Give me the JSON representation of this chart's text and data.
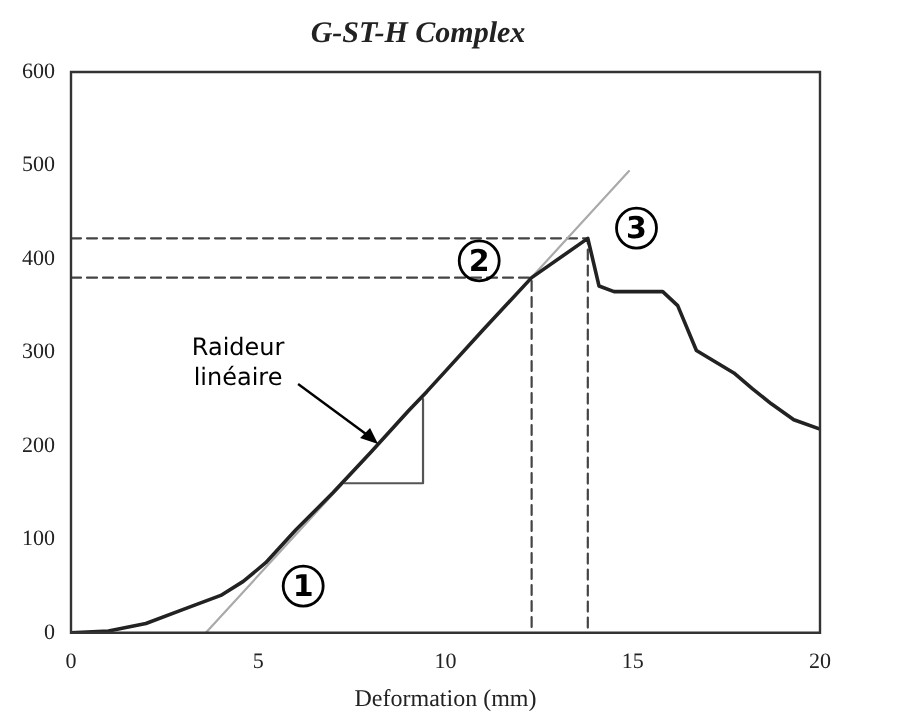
{
  "chart_data": {
    "type": "line",
    "title": "G-ST-H Complex",
    "xlabel": "Deformation (mm)",
    "x": [
      0,
      1,
      2,
      3,
      4,
      4.6,
      5.2,
      6,
      7,
      8,
      9,
      9.5,
      10,
      11,
      12.3,
      13.8,
      14.1,
      14.5,
      15.8,
      16.2,
      16.7,
      17.2,
      17.7,
      18.2,
      18.7,
      19.3,
      20
    ],
    "series": [
      {
        "color": "#222222",
        "values": [
          0,
          2,
          10,
          25,
          40,
          55,
          75,
          110,
          150,
          193,
          237,
          258,
          280,
          324,
          380,
          422,
          371,
          365,
          365,
          350,
          302,
          290,
          278,
          261,
          245,
          228,
          218
        ]
      },
      {
        "color": "#aaaaaa",
        "line_style": "solid",
        "x": [
          3.6,
          14.9
        ],
        "values": [
          0,
          494
        ]
      },
      {
        "color": "#555555",
        "line_style": "solid",
        "x": [
          7.3,
          9.4,
          9.4
        ],
        "values": [
          160,
          160,
          250
        ]
      },
      {
        "color": "#444444",
        "line_style": "dashed",
        "x": [
          0,
          12.3,
          12.3
        ],
        "values": [
          380,
          380,
          0
        ]
      },
      {
        "color": "#444444",
        "line_style": "dashed",
        "x": [
          0,
          13.8,
          13.8
        ],
        "values": [
          422,
          422,
          0
        ]
      }
    ],
    "xlim": [
      0,
      20
    ],
    "xticks": [
      0,
      5,
      10,
      15,
      20
    ],
    "ylim": [
      0,
      600
    ],
    "yticks": [
      0,
      100,
      200,
      300,
      400,
      500,
      600
    ],
    "grid": false,
    "legend": false,
    "marker": "none",
    "annotations": [
      {
        "text": "Raideur linéaire",
        "x": 8.2,
        "y": 202
      },
      {
        "text": "1",
        "x": 6.2,
        "y": 50
      },
      {
        "text": "2",
        "x": 10.9,
        "y": 398
      },
      {
        "text": "3",
        "x": 15.1,
        "y": 433
      }
    ]
  }
}
